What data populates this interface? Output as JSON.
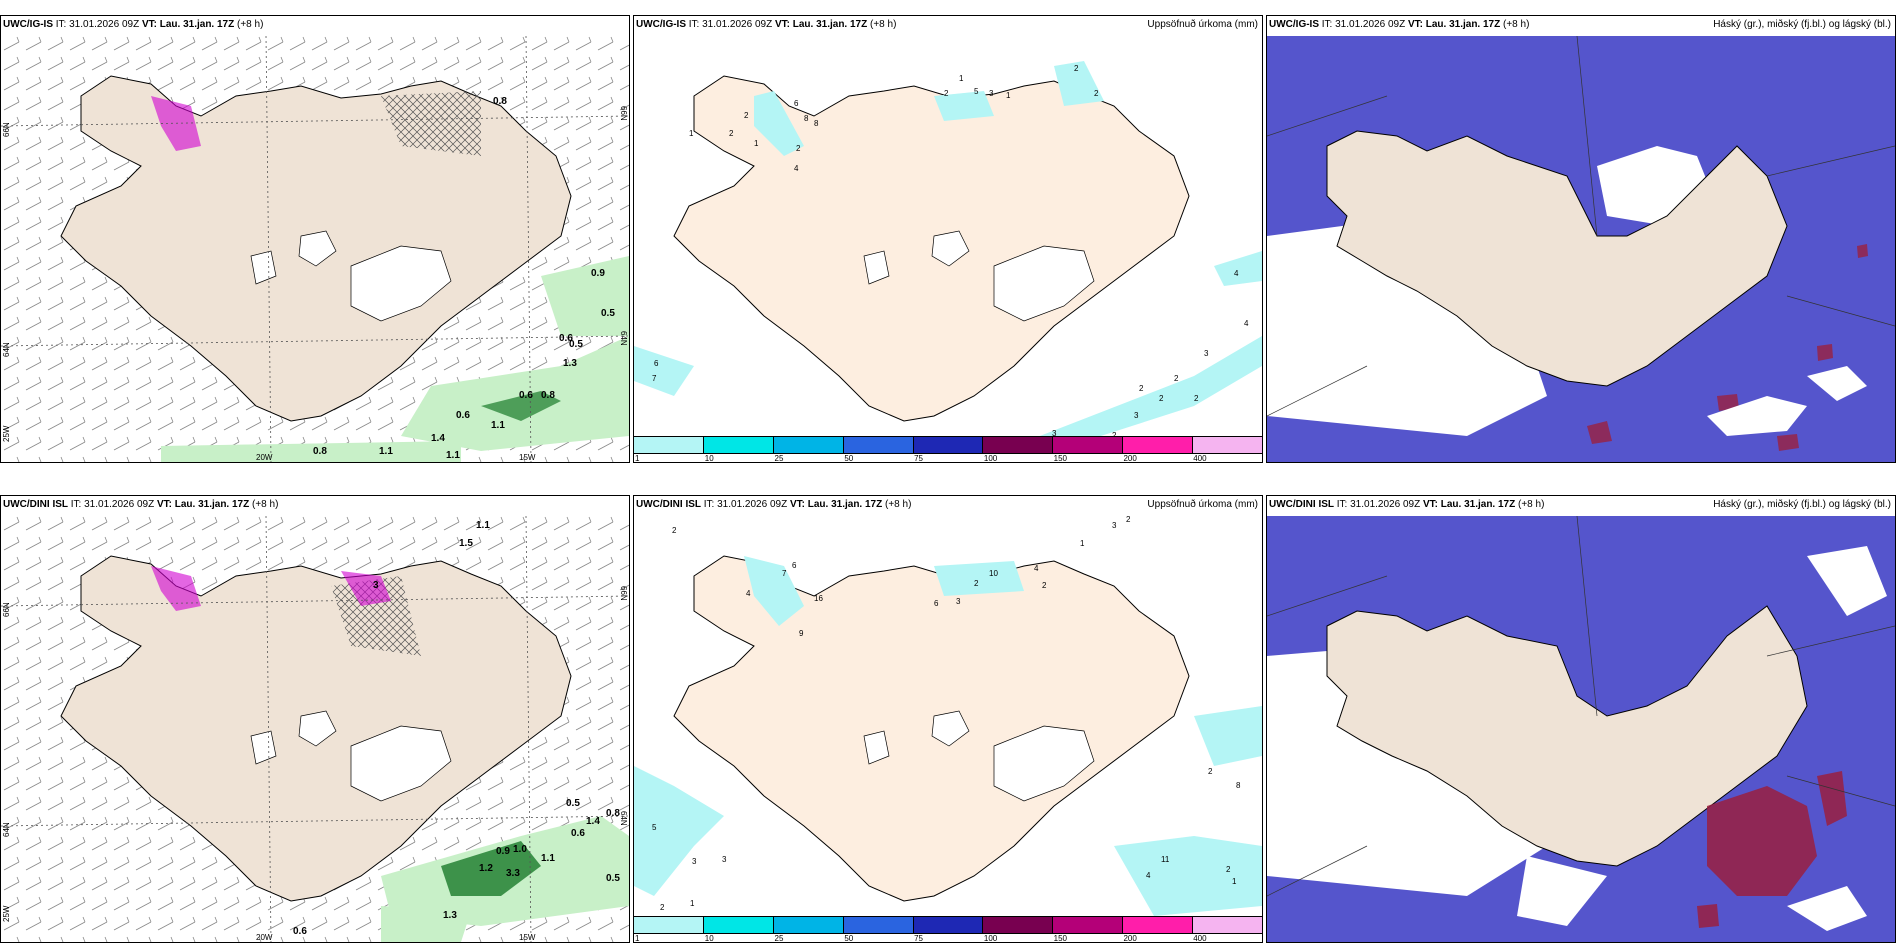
{
  "rows": [
    {
      "model": "UWC/IG-IS",
      "panels": [
        {
          "id": "r1c1",
          "title": {
            "model": "UWC/IG-IS",
            "it_label": "IT:",
            "it": "31.01.2026 09Z",
            "vt_label": "VT:",
            "vt": "Lau. 31.jan. 17Z",
            "lead": "(+8 h)"
          },
          "right_title": "",
          "lat_labels": [
            "66N",
            "64N",
            "25W"
          ],
          "lat_labels_right": [
            "66N",
            "64N"
          ],
          "lon_labels": [
            "20W",
            "15W"
          ],
          "values": [
            "0.8",
            "0.9",
            "0.5",
            "0.6",
            "0.5",
            "1.3",
            "0.6",
            "0.6",
            "1.1",
            "1.1",
            "0.8",
            "1.1",
            "1.4",
            "0.8"
          ]
        },
        {
          "id": "r1c2",
          "title": {
            "model": "UWC/IG-IS",
            "it_label": "IT:",
            "it": "31.01.2026 09Z",
            "vt_label": "VT:",
            "vt": "Lau. 31.jan. 17Z",
            "lead": "(+8 h)"
          },
          "right_title": "Uppsöfnuð úrkoma (mm)",
          "point_labels": [
            "1",
            "2",
            "2",
            "1",
            "2",
            "6",
            "8",
            "8",
            "4",
            "2",
            "1",
            "5",
            "3",
            "1",
            "2",
            "2",
            "4",
            "4",
            "3",
            "2",
            "2",
            "2",
            "2",
            "3",
            "2",
            "3",
            "6",
            "7"
          ]
        },
        {
          "id": "r1c3",
          "title": {
            "model": "UWC/IG-IS",
            "it_label": "IT:",
            "it": "31.01.2026 09Z",
            "vt_label": "VT:",
            "vt": "Lau. 31.jan. 17Z",
            "lead": "(+8 h)"
          },
          "right_title": "Háský (gr.), miðský (fj.bl.) og lágský (bl.)"
        }
      ]
    },
    {
      "model": "UWC/DINI ISL",
      "panels": [
        {
          "id": "r2c1",
          "title": {
            "model": "UWC/DINI ISL",
            "it_label": "IT:",
            "it": "31.01.2026 09Z",
            "vt_label": "VT:",
            "vt": "Lau. 31.jan. 17Z",
            "lead": "(+8 h)"
          },
          "right_title": "",
          "lat_labels": [
            "66N",
            "64N",
            "25W"
          ],
          "lat_labels_right": [
            "66N",
            "64N"
          ],
          "lon_labels": [
            "20W",
            "15W"
          ],
          "values": [
            "1.1",
            "1.5",
            "3",
            "0.5",
            "0.8",
            "0.6",
            "1.4",
            "0.9",
            "1.0",
            "1.1",
            "1.2",
            "3.3",
            "1.3",
            "0.5",
            "0.6"
          ]
        },
        {
          "id": "r2c2",
          "title": {
            "model": "UWC/DINI ISL",
            "it_label": "IT:",
            "it": "31.01.2026 09Z",
            "vt_label": "VT:",
            "vt": "Lau. 31.jan. 17Z",
            "lead": "(+8 h)"
          },
          "right_title": "Uppsöfnuð úrkoma (mm)",
          "point_labels": [
            "2",
            "7",
            "6",
            "4",
            "16",
            "9",
            "6",
            "3",
            "2",
            "10",
            "4",
            "2",
            "1",
            "3",
            "2",
            "2",
            "8",
            "11",
            "4",
            "2",
            "1",
            "5",
            "3",
            "3",
            "2",
            "1"
          ]
        },
        {
          "id": "r2c3",
          "title": {
            "model": "UWC/DINI ISL",
            "it_label": "IT:",
            "it": "31.01.2026 09Z",
            "vt_label": "VT:",
            "vt": "Lau. 31.jan. 17Z",
            "lead": "(+8 h)"
          },
          "right_title": "Háský (gr.), miðský (fj.bl.) og lágský (bl.)"
        }
      ]
    }
  ],
  "colorbar": {
    "labels": [
      "1",
      "10",
      "25",
      "50",
      "75",
      "100",
      "150",
      "200",
      "400"
    ],
    "colors": [
      "#b4f5f5",
      "#00e6e6",
      "#00b4e6",
      "#2a64e0",
      "#1e28b4",
      "#780050",
      "#b40078",
      "#ff1eaa",
      "#f5b4f0"
    ]
  },
  "colors": {
    "land": "#efe3d6",
    "land_precip": "#fdeee0",
    "sea": "#ffffff",
    "precip_light": "#c8f0c8",
    "precip_dark": "#1a7a2a",
    "snow": "#d000d0",
    "cloud_mid": "#5555cc",
    "cloud_low": "#3a7ad8",
    "cloud_high": "#999999",
    "cloud_red": "#9a2040",
    "rain_cyan": "#b4f5f5"
  }
}
